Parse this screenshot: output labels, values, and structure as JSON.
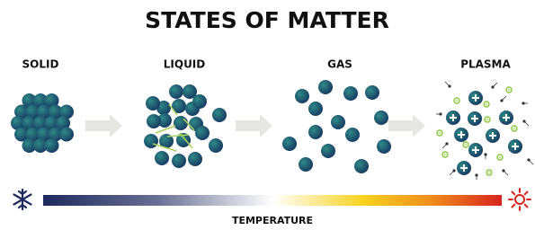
{
  "title": "STATES OF MATTER",
  "states": [
    {
      "label": "SOLID"
    },
    {
      "label": "LIQUID"
    },
    {
      "label": "GAS"
    },
    {
      "label": "PLASMA"
    }
  ],
  "axis": {
    "label": "TEMPERATURE"
  }
}
